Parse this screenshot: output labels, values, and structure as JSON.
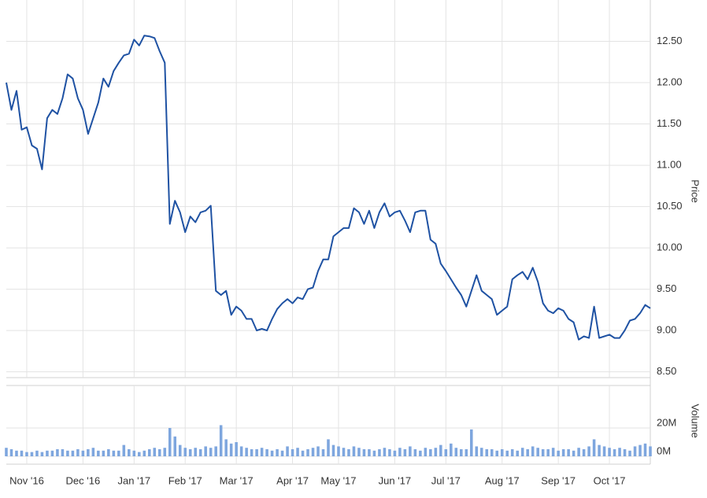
{
  "chart_data": [
    {
      "type": "line",
      "ylabel": "Price",
      "series": [
        {
          "color": "#1f52a3",
          "values": [
            12.0,
            11.67,
            11.9,
            11.43,
            11.46,
            11.24,
            11.2,
            10.95,
            11.57,
            11.67,
            11.62,
            11.81,
            12.1,
            12.05,
            11.81,
            11.67,
            11.38,
            11.57,
            11.76,
            12.05,
            11.95,
            12.14,
            12.24,
            12.33,
            12.35,
            12.52,
            12.45,
            12.57,
            12.56,
            12.54,
            12.38,
            12.24,
            10.29,
            10.57,
            10.43,
            10.19,
            10.38,
            10.31,
            10.43,
            10.45,
            10.51,
            9.48,
            9.43,
            9.48,
            9.19,
            9.29,
            9.24,
            9.14,
            9.14,
            9.0,
            9.02,
            9.0,
            9.14,
            9.26,
            9.33,
            9.38,
            9.33,
            9.4,
            9.38,
            9.5,
            9.52,
            9.72,
            9.86,
            9.86,
            10.14,
            10.19,
            10.24,
            10.24,
            10.48,
            10.43,
            10.29,
            10.45,
            10.24,
            10.43,
            10.54,
            10.38,
            10.43,
            10.45,
            10.33,
            10.19,
            10.43,
            10.45,
            10.45,
            10.1,
            10.05,
            9.81,
            9.72,
            9.62,
            9.52,
            9.43,
            9.29,
            9.48,
            9.67,
            9.48,
            9.43,
            9.38,
            9.19,
            9.24,
            9.29,
            9.62,
            9.67,
            9.71,
            9.62,
            9.76,
            9.59,
            9.33,
            9.24,
            9.21,
            9.27,
            9.24,
            9.14,
            9.1,
            8.89,
            8.93,
            8.91,
            9.29,
            8.91,
            8.93,
            8.95,
            8.91,
            8.91,
            9.0,
            9.12,
            9.14,
            9.21,
            9.31,
            9.27
          ]
        }
      ],
      "xlim": [
        0,
        126
      ],
      "xticks": [
        {
          "value": 4,
          "label": "Nov '16"
        },
        {
          "value": 15,
          "label": "Dec '16"
        },
        {
          "value": 25,
          "label": "Jan '17"
        },
        {
          "value": 35,
          "label": "Feb '17"
        },
        {
          "value": 45,
          "label": "Mar '17"
        },
        {
          "value": 56,
          "label": "Apr '17"
        },
        {
          "value": 65,
          "label": "May '17"
        },
        {
          "value": 76,
          "label": "Jun '17"
        },
        {
          "value": 86,
          "label": "Jul '17"
        },
        {
          "value": 97,
          "label": "Aug '17"
        },
        {
          "value": 108,
          "label": "Sep '17"
        },
        {
          "value": 118,
          "label": "Oct '17"
        }
      ],
      "ylim": [
        8.43,
        13.0
      ],
      "yticks": [
        {
          "value": 8.5,
          "label": "8.50"
        },
        {
          "value": 9,
          "label": "9.00"
        },
        {
          "value": 9.5,
          "label": "9.50"
        },
        {
          "value": 10,
          "label": "10.00"
        },
        {
          "value": 10.5,
          "label": "10.50"
        },
        {
          "value": 11,
          "label": "11.00"
        },
        {
          "value": 11.5,
          "label": "11.50"
        },
        {
          "value": 12,
          "label": "12.00"
        },
        {
          "value": 12.5,
          "label": "12.50"
        }
      ],
      "grid": true
    },
    {
      "type": "bar",
      "ylabel": "Volume",
      "color": "#7ea6de",
      "values": [
        6,
        5,
        4,
        4,
        3,
        3,
        4,
        3,
        4,
        4,
        5,
        5,
        4,
        4,
        5,
        4,
        5,
        6,
        4,
        4,
        5,
        4,
        4,
        8,
        5,
        4,
        3,
        4,
        5,
        6,
        5,
        6,
        20,
        14,
        8,
        6,
        5,
        6,
        5,
        7,
        6,
        7,
        22,
        12,
        9,
        10,
        7,
        6,
        5,
        5,
        6,
        5,
        4,
        5,
        4,
        7,
        5,
        6,
        4,
        5,
        6,
        7,
        5,
        12,
        8,
        7,
        6,
        5,
        7,
        6,
        5,
        5,
        4,
        5,
        6,
        5,
        4,
        6,
        5,
        7,
        5,
        4,
        6,
        5,
        6,
        8,
        5,
        9,
        6,
        5,
        5,
        19,
        7,
        6,
        5,
        5,
        4,
        5,
        4,
        5,
        4,
        6,
        5,
        7,
        6,
        5,
        5,
        6,
        4,
        5,
        5,
        4,
        6,
        5,
        7,
        12,
        8,
        7,
        6,
        5,
        6,
        5,
        4,
        7,
        8,
        9,
        7
      ],
      "xlim": [
        0,
        126
      ],
      "ylim": [
        0,
        50
      ],
      "yticks": [
        {
          "value": 0,
          "label": "0M"
        },
        {
          "value": 20,
          "label": "20M"
        }
      ],
      "grid": true
    }
  ]
}
